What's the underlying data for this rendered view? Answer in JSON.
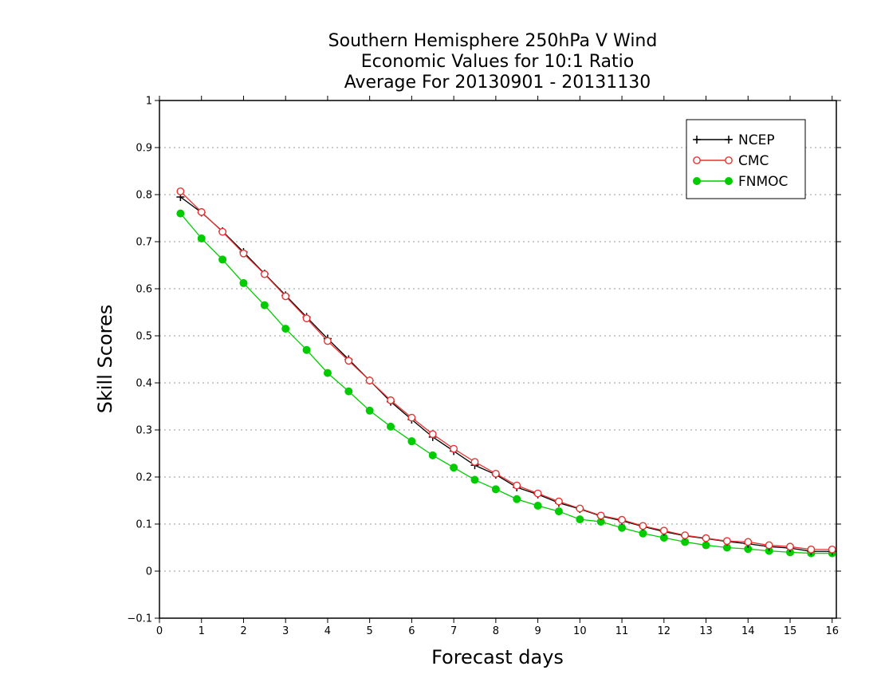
{
  "chart_data": {
    "type": "line",
    "title_lines": [
      "Southern Hemisphere 250hPa V Wind",
      "Economic Values for 10:1 Ratio",
      "Average For 20130901 - 20131130"
    ],
    "xlabel": "Forecast days",
    "ylabel": "Skill Scores",
    "xlim": [
      0,
      16.1
    ],
    "ylim": [
      -0.1,
      1
    ],
    "xticks": [
      0,
      1,
      2,
      3,
      4,
      5,
      6,
      7,
      8,
      9,
      10,
      11,
      12,
      13,
      14,
      15,
      16
    ],
    "yticks": [
      -0.1,
      0,
      0.1,
      0.2,
      0.3,
      0.4,
      0.5,
      0.6,
      0.7,
      0.8,
      0.9,
      1
    ],
    "xtick_labels": [
      "0",
      "1",
      "2",
      "3",
      "4",
      "5",
      "6",
      "7",
      "8",
      "9",
      "10",
      "11",
      "12",
      "13",
      "14",
      "15",
      "16"
    ],
    "ytick_labels": [
      "−0.1",
      "0",
      "0.1",
      "0.2",
      "0.3",
      "0.4",
      "0.5",
      "0.6",
      "0.7",
      "0.8",
      "0.9",
      "1"
    ],
    "grid": "horizontal dotted",
    "legend_position": "top-right",
    "x": [
      0.5,
      1,
      1.5,
      2,
      2.5,
      3,
      3.5,
      4,
      4.5,
      5,
      5.5,
      6,
      6.5,
      7,
      7.5,
      8,
      8.5,
      9,
      9.5,
      10,
      10.5,
      11,
      11.5,
      12,
      12.5,
      13,
      13.5,
      14,
      14.5,
      15,
      15.5,
      16
    ],
    "series": [
      {
        "name": "NCEP",
        "color": "#000000",
        "marker": "plus",
        "values": [
          0.795,
          0.762,
          0.722,
          0.678,
          0.632,
          0.586,
          0.54,
          0.494,
          0.45,
          0.405,
          0.36,
          0.322,
          0.285,
          0.255,
          0.225,
          0.205,
          0.178,
          0.163,
          0.145,
          0.132,
          0.117,
          0.107,
          0.095,
          0.084,
          0.075,
          0.069,
          0.063,
          0.058,
          0.052,
          0.049,
          0.042,
          0.042
        ]
      },
      {
        "name": "CMC",
        "color": "#e83232",
        "marker": "open-circle",
        "values": [
          0.807,
          0.763,
          0.721,
          0.675,
          0.631,
          0.584,
          0.537,
          0.489,
          0.447,
          0.405,
          0.363,
          0.326,
          0.291,
          0.26,
          0.232,
          0.207,
          0.182,
          0.165,
          0.148,
          0.133,
          0.118,
          0.109,
          0.096,
          0.086,
          0.076,
          0.07,
          0.064,
          0.062,
          0.055,
          0.052,
          0.046,
          0.046
        ]
      },
      {
        "name": "FNMOC",
        "color": "#00cc00",
        "marker": "filled-circle",
        "values": [
          0.76,
          0.707,
          0.662,
          0.612,
          0.565,
          0.515,
          0.47,
          0.421,
          0.382,
          0.341,
          0.307,
          0.276,
          0.246,
          0.22,
          0.194,
          0.174,
          0.153,
          0.139,
          0.127,
          0.11,
          0.105,
          0.092,
          0.08,
          0.071,
          0.062,
          0.055,
          0.05,
          0.047,
          0.043,
          0.04,
          0.038,
          0.038
        ]
      }
    ]
  }
}
